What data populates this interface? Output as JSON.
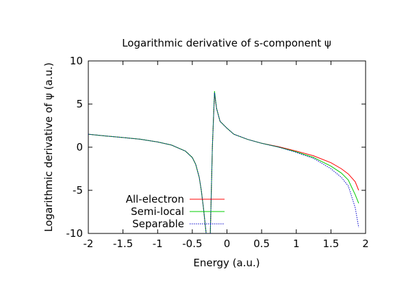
{
  "chart_data": {
    "type": "line",
    "title": "Logarithmic derivative of s-component ψ",
    "xlabel": "Energy (a.u.)",
    "ylabel": "Logarithmic derivative of ψ (a.u.)",
    "xlim": [
      -2,
      2
    ],
    "ylim": [
      -10,
      10
    ],
    "xticks": [
      -2,
      -1.5,
      -1,
      -0.5,
      0,
      0.5,
      1,
      1.5,
      2
    ],
    "xtick_labels": [
      "-2",
      "-1.5",
      "-1",
      "-0.5",
      "0",
      "0.5",
      "1",
      "1.5",
      "2"
    ],
    "yticks": [
      -10,
      -5,
      0,
      5,
      10
    ],
    "ytick_labels": [
      "-10",
      "-5",
      "0",
      "5",
      "10"
    ],
    "grid": false,
    "legend_position": "bottom-left",
    "series": [
      {
        "name": "All-electron",
        "color": "#ff0000",
        "dash": "solid",
        "segments": [
          [
            [
              -2.0,
              1.5
            ],
            [
              -1.75,
              1.3
            ],
            [
              -1.5,
              1.12
            ],
            [
              -1.25,
              0.92
            ],
            [
              -1.0,
              0.6
            ],
            [
              -0.8,
              0.25
            ],
            [
              -0.6,
              -0.45
            ],
            [
              -0.5,
              -1.2
            ],
            [
              -0.45,
              -2.0
            ],
            [
              -0.4,
              -3.5
            ],
            [
              -0.37,
              -5.0
            ],
            [
              -0.34,
              -7.0
            ],
            [
              -0.32,
              -8.5
            ],
            [
              -0.3,
              -10.0
            ]
          ],
          [
            [
              -0.24,
              -10.0
            ],
            [
              -0.21,
              0.0
            ],
            [
              -0.18,
              6.2
            ],
            [
              -0.15,
              4.5
            ],
            [
              -0.1,
              3.0
            ],
            [
              0.0,
              2.2
            ],
            [
              0.1,
              1.5
            ],
            [
              0.3,
              0.9
            ],
            [
              0.5,
              0.45
            ],
            [
              0.75,
              0.05
            ],
            [
              1.0,
              -0.45
            ],
            [
              1.25,
              -1.0
            ],
            [
              1.5,
              -1.8
            ],
            [
              1.65,
              -2.5
            ],
            [
              1.75,
              -3.1
            ],
            [
              1.85,
              -4.0
            ],
            [
              1.9,
              -5.0
            ]
          ]
        ]
      },
      {
        "name": "Semi-local",
        "color": "#00cc00",
        "dash": "solid",
        "segments": [
          [
            [
              -2.0,
              1.5
            ],
            [
              -1.75,
              1.3
            ],
            [
              -1.5,
              1.12
            ],
            [
              -1.25,
              0.92
            ],
            [
              -1.0,
              0.6
            ],
            [
              -0.8,
              0.25
            ],
            [
              -0.6,
              -0.45
            ],
            [
              -0.5,
              -1.2
            ],
            [
              -0.45,
              -2.0
            ],
            [
              -0.4,
              -3.5
            ],
            [
              -0.37,
              -5.0
            ],
            [
              -0.34,
              -7.0
            ],
            [
              -0.32,
              -8.5
            ],
            [
              -0.3,
              -10.0
            ]
          ],
          [
            [
              -0.24,
              -10.0
            ],
            [
              -0.21,
              0.0
            ],
            [
              -0.18,
              6.5
            ],
            [
              -0.15,
              4.5
            ],
            [
              -0.1,
              3.0
            ],
            [
              0.0,
              2.2
            ],
            [
              0.1,
              1.5
            ],
            [
              0.3,
              0.9
            ],
            [
              0.5,
              0.45
            ],
            [
              0.75,
              0.0
            ],
            [
              1.0,
              -0.55
            ],
            [
              1.25,
              -1.2
            ],
            [
              1.5,
              -2.2
            ],
            [
              1.65,
              -3.0
            ],
            [
              1.75,
              -3.8
            ],
            [
              1.85,
              -5.5
            ],
            [
              1.9,
              -6.5
            ]
          ]
        ]
      },
      {
        "name": "Separable",
        "color": "#0000cc",
        "dash": "dotted",
        "segments": [
          [
            [
              -2.0,
              1.5
            ],
            [
              -1.75,
              1.3
            ],
            [
              -1.5,
              1.12
            ],
            [
              -1.25,
              0.92
            ],
            [
              -1.0,
              0.6
            ],
            [
              -0.8,
              0.25
            ],
            [
              -0.6,
              -0.45
            ],
            [
              -0.5,
              -1.2
            ],
            [
              -0.45,
              -2.0
            ],
            [
              -0.4,
              -3.5
            ],
            [
              -0.37,
              -5.0
            ],
            [
              -0.34,
              -7.0
            ],
            [
              -0.32,
              -8.5
            ],
            [
              -0.3,
              -10.0
            ]
          ],
          [
            [
              -0.24,
              -10.0
            ],
            [
              -0.21,
              0.0
            ],
            [
              -0.18,
              6.3
            ],
            [
              -0.15,
              4.5
            ],
            [
              -0.1,
              3.0
            ],
            [
              0.0,
              2.2
            ],
            [
              0.1,
              1.5
            ],
            [
              0.3,
              0.9
            ],
            [
              0.5,
              0.45
            ],
            [
              0.75,
              0.0
            ],
            [
              1.0,
              -0.6
            ],
            [
              1.25,
              -1.3
            ],
            [
              1.5,
              -2.5
            ],
            [
              1.65,
              -3.5
            ],
            [
              1.75,
              -4.5
            ],
            [
              1.85,
              -7.0
            ],
            [
              1.9,
              -9.3
            ]
          ]
        ]
      }
    ]
  }
}
